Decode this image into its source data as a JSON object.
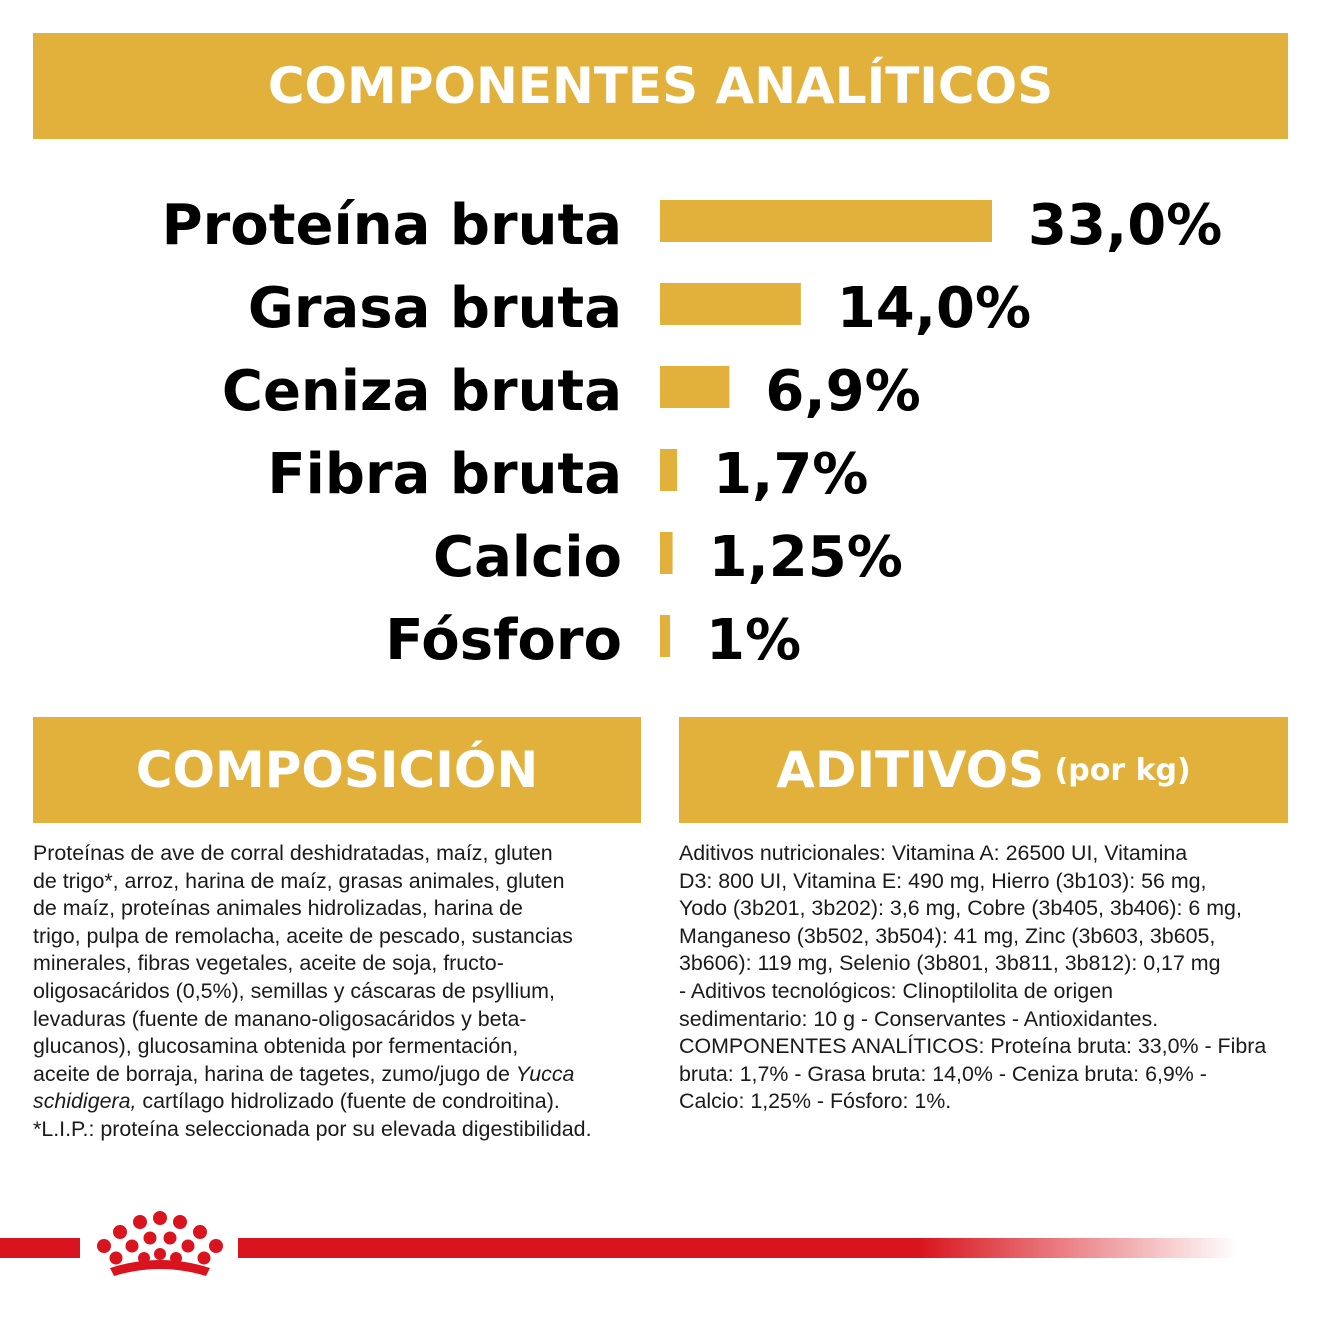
{
  "header": {
    "title": "COMPONENTES ANALÍTICOS"
  },
  "chart_data": {
    "type": "bar",
    "orientation": "horizontal",
    "categories": [
      "Proteína bruta",
      "Grasa bruta",
      "Ceniza bruta",
      "Fibra bruta",
      "Calcio",
      "Fósforo"
    ],
    "values": [
      33.0,
      14.0,
      6.9,
      1.7,
      1.25,
      1.0
    ],
    "value_labels": [
      "33,0%",
      "14,0%",
      "6,9%",
      "1,7%",
      "1,25%",
      "1%"
    ],
    "unit": "%",
    "bar_color": "#e2b13c",
    "grid": false,
    "title": "",
    "xlabel": "",
    "ylabel": ""
  },
  "composicion": {
    "title": "COMPOSICIÓN",
    "lines": [
      "Proteínas de ave de corral deshidratadas, maíz, gluten",
      "de trigo*, arroz, harina de maíz, grasas animales, gluten",
      "de maíz, proteínas animales hidrolizadas, harina de",
      "trigo, pulpa de remolacha, aceite de pescado, sustancias",
      "minerales, fibras vegetales, aceite de soja, fructo-",
      "oligosacáridos (0,5%), semillas y cáscaras de psyllium,",
      "levaduras (fuente de manano-oligosacáridos y beta-",
      "glucanos), glucosamina obtenida por fermentación,"
    ],
    "line9_pre": "aceite de borraja, harina de tagetes, zumo/jugo de ",
    "line9_italic": "Yucca",
    "line10_italic": "schidigera,",
    "line10_post": " cartílago hidrolizado (fuente de condroitina).",
    "line11": "*L.I.P.: proteína seleccionada por su elevada digestibilidad."
  },
  "aditivos": {
    "title": "ADITIVOS",
    "subtitle": "(por kg)",
    "lines": [
      "Aditivos nutricionales: Vitamina A: 26500 UI, Vitamina",
      "D3: 800 UI, Vitamina E: 490 mg, Hierro (3b103): 56 mg,",
      "Yodo (3b201, 3b202): 3,6 mg, Cobre (3b405, 3b406): 6 mg,",
      "Manganeso (3b502, 3b504): 41 mg, Zinc (3b603, 3b605,",
      "3b606): 119 mg, Selenio (3b801, 3b811, 3b812): 0,17 mg",
      "- Aditivos tecnológicos: Clinoptilolita de origen",
      "sedimentario: 10 g - Conservantes - Antioxidantes.",
      "COMPONENTES ANALÍTICOS: Proteína bruta: 33,0% - Fibra",
      "bruta: 1,7% - Grasa bruta: 14,0% - Ceniza bruta: 6,9% -",
      "Calcio: 1,25% - Fósforo: 1%."
    ]
  },
  "footer": {
    "logo_icon": "royal-canin-crown-icon",
    "stripe_color": "#d9141e"
  }
}
